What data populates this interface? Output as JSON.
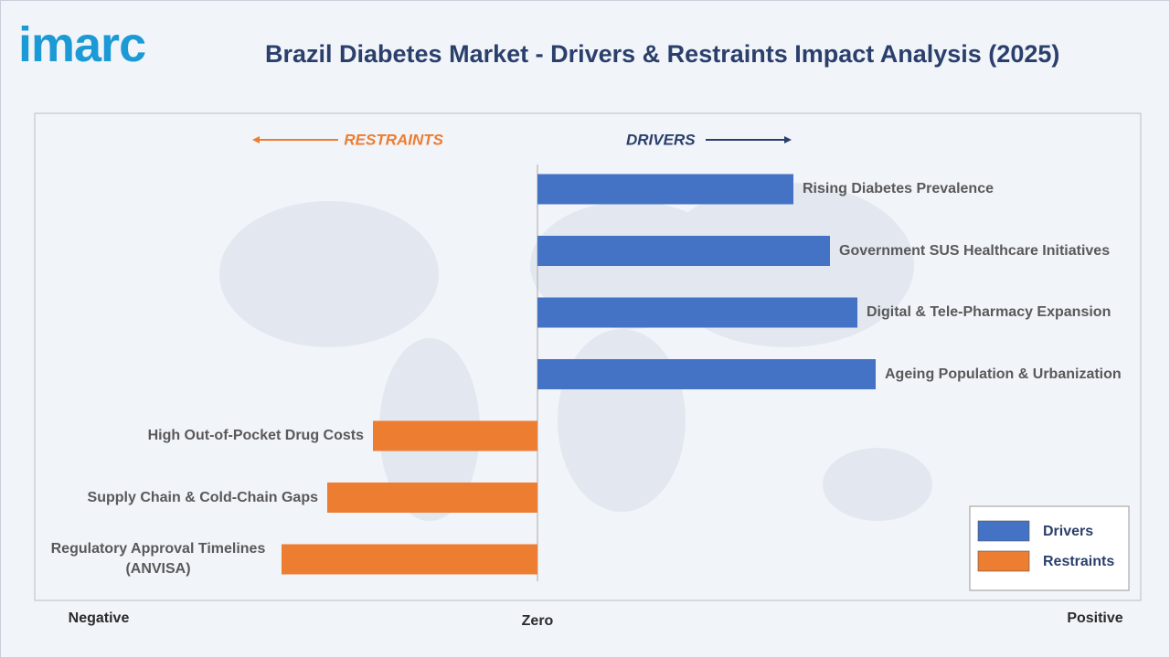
{
  "header": {
    "logo": "imarc"
  },
  "chart_data": {
    "type": "bar",
    "orientation": "horizontal",
    "title": "Brazil Diabetes Market - Drivers & Restraints Impact Analysis (2025)",
    "annotations": {
      "left": "RESTRAINTS",
      "right": "DRIVERS"
    },
    "categories": [
      "Rising Diabetes Prevalence",
      "Government SUS Healthcare Initiatives",
      "Digital & Tele-Pharmacy Expansion",
      "Ageing Population & Urbanization",
      "High Out-of-Pocket Drug Costs",
      "Supply Chain & Cold-Chain Gaps",
      "Regulatory Approval Timelines (ANVISA)"
    ],
    "series": [
      {
        "name": "Drivers",
        "color": "#4472c4",
        "values": [
          28,
          32,
          35,
          37,
          null,
          null,
          null
        ]
      },
      {
        "name": "Restraints",
        "color": "#ed7d31",
        "values": [
          null,
          null,
          null,
          null,
          -18,
          -23,
          -28
        ]
      }
    ],
    "xlim": [
      -55,
      66
    ],
    "xticks": [
      {
        "value": -48,
        "label": "Negative"
      },
      {
        "value": 0,
        "label": "Zero"
      },
      {
        "value": 61,
        "label": "Positive"
      }
    ],
    "legend": "lower right"
  }
}
